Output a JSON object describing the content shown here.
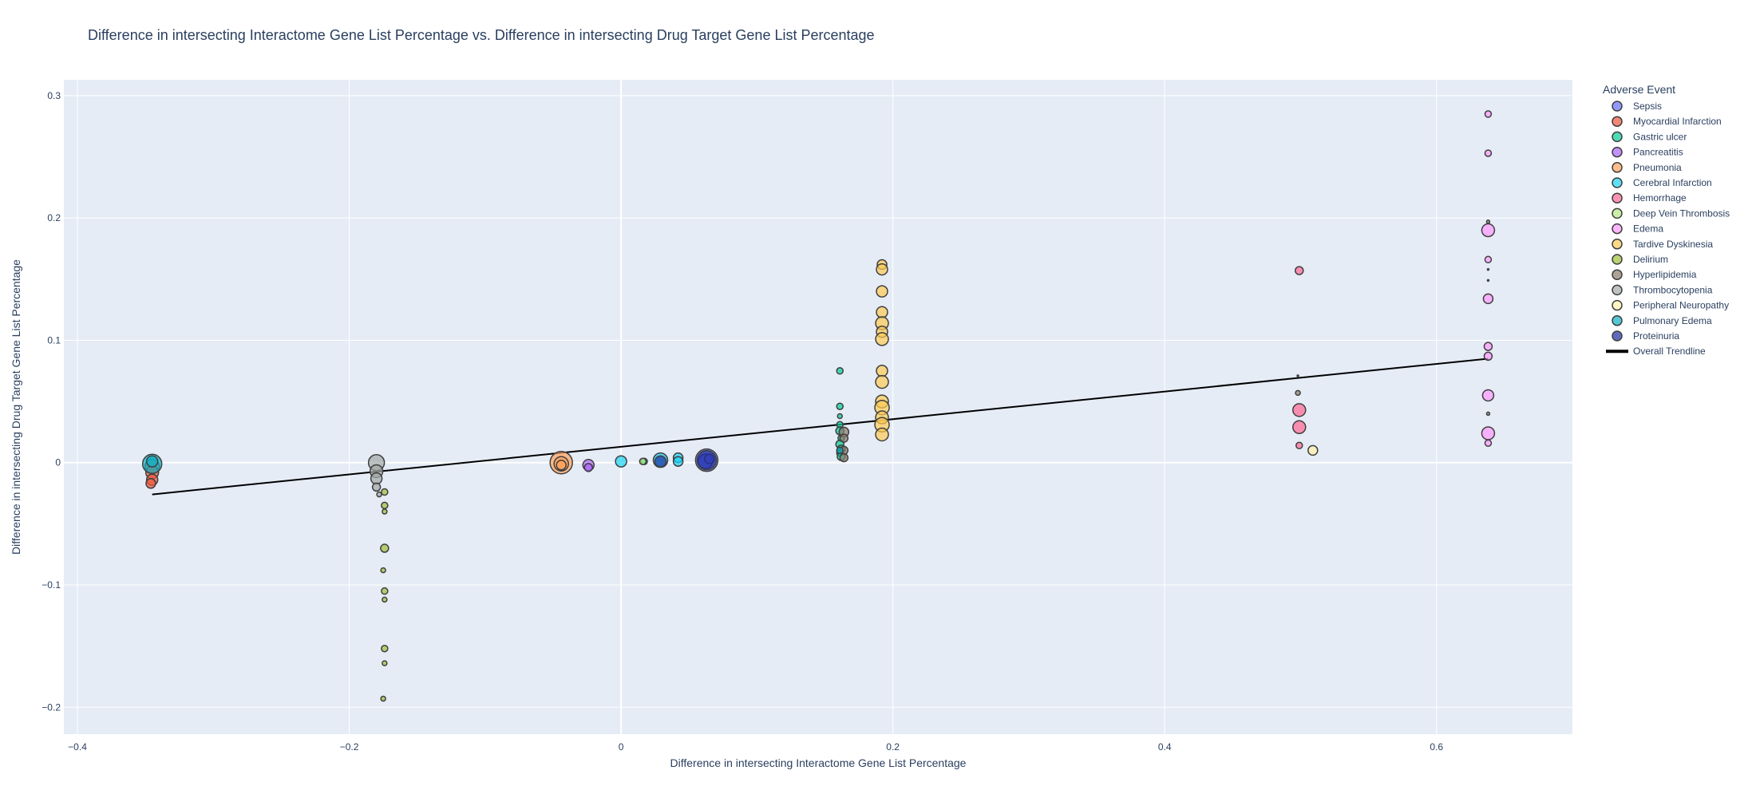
{
  "chart_data": {
    "type": "scatter",
    "title": "Difference in intersecting Interactome Gene List Percentage vs. Difference in intersecting Drug Target Gene List Percentage",
    "xlabel": "Difference in intersecting Interactome Gene List Percentage",
    "ylabel": "Difference in intersecting Drug Target Gene List Percentage",
    "xlim": [
      -0.41,
      0.7
    ],
    "ylim": [
      -0.222,
      0.313
    ],
    "x_ticks": [
      -0.4,
      -0.2,
      0,
      0.2,
      0.4,
      0.6
    ],
    "x_tick_labels": [
      "−0.4",
      "−0.2",
      "0",
      "0.2",
      "0.4",
      "0.6"
    ],
    "y_ticks": [
      -0.2,
      -0.1,
      0,
      0.1,
      0.2,
      0.3
    ],
    "y_tick_labels": [
      "−0.2",
      "−0.1",
      "0",
      "0.1",
      "0.2",
      "0.3"
    ],
    "grid": true,
    "legend_title": "Adverse Event",
    "legend_position": "right",
    "series": [
      {
        "name": "Sepsis",
        "color": "#636efa",
        "points": [
          [
            0.063,
            0.002,
            14
          ],
          [
            0.062,
            0.001,
            9
          ],
          [
            0.065,
            0.003,
            6
          ]
        ]
      },
      {
        "name": "Myocardial Infarction",
        "color": "#EF553B",
        "points": [
          [
            -0.345,
            -0.003,
            9
          ],
          [
            -0.345,
            -0.008,
            8
          ],
          [
            -0.345,
            -0.014,
            7
          ],
          [
            -0.346,
            -0.017,
            6
          ]
        ]
      },
      {
        "name": "Gastric ulcer",
        "color": "#00cc96",
        "points": [
          [
            0.161,
            0.075,
            4
          ],
          [
            0.161,
            0.046,
            4
          ],
          [
            0.161,
            0.038,
            3
          ],
          [
            0.161,
            0.031,
            4
          ],
          [
            0.161,
            0.026,
            5
          ],
          [
            0.162,
            0.02,
            4
          ],
          [
            0.161,
            0.015,
            5
          ],
          [
            0.162,
            0.011,
            5
          ],
          [
            0.161,
            0.008,
            4
          ],
          [
            0.162,
            0.005,
            5
          ],
          [
            0.017,
            0.001,
            4
          ]
        ]
      },
      {
        "name": "Pancreatitis",
        "color": "#ab63fa",
        "points": [
          [
            -0.024,
            -0.002,
            7
          ],
          [
            -0.024,
            -0.004,
            5
          ]
        ]
      },
      {
        "name": "Pneumonia",
        "color": "#FFA15A",
        "points": [
          [
            -0.044,
            0.0,
            14
          ],
          [
            -0.044,
            -0.001,
            9
          ],
          [
            -0.044,
            -0.002,
            6
          ]
        ]
      },
      {
        "name": "Cerebral Infarction",
        "color": "#19d3f3",
        "points": [
          [
            0.0,
            0.001,
            7
          ],
          [
            0.042,
            0.004,
            6
          ],
          [
            0.042,
            0.001,
            6
          ],
          [
            0.029,
            0.002,
            9
          ]
        ]
      },
      {
        "name": "Hemorrhage",
        "color": "#FF6692",
        "points": [
          [
            0.499,
            0.157,
            5
          ],
          [
            0.499,
            0.043,
            8
          ],
          [
            0.499,
            0.029,
            8
          ],
          [
            0.499,
            0.014,
            4
          ]
        ]
      },
      {
        "name": "Deep Vein Thrombosis",
        "color": "#B6E880",
        "points": [
          [
            0.016,
            0.001,
            4
          ]
        ]
      },
      {
        "name": "Edema",
        "color": "#FF97FF",
        "points": [
          [
            0.638,
            0.285,
            4
          ],
          [
            0.638,
            0.253,
            4
          ],
          [
            0.638,
            0.19,
            8
          ],
          [
            0.638,
            0.166,
            4
          ],
          [
            0.638,
            0.134,
            6
          ],
          [
            0.638,
            0.095,
            5
          ],
          [
            0.638,
            0.087,
            5
          ],
          [
            0.638,
            0.055,
            7
          ],
          [
            0.638,
            0.024,
            8
          ],
          [
            0.638,
            0.016,
            4
          ]
        ]
      },
      {
        "name": "Tardive Dyskinesia",
        "color": "#FECB52",
        "points": [
          [
            0.192,
            0.162,
            6
          ],
          [
            0.192,
            0.158,
            7
          ],
          [
            0.192,
            0.14,
            7
          ],
          [
            0.192,
            0.123,
            7
          ],
          [
            0.192,
            0.114,
            8
          ],
          [
            0.192,
            0.107,
            7
          ],
          [
            0.192,
            0.101,
            8
          ],
          [
            0.192,
            0.075,
            7
          ],
          [
            0.192,
            0.066,
            8
          ],
          [
            0.192,
            0.05,
            8
          ],
          [
            0.192,
            0.045,
            9
          ],
          [
            0.192,
            0.037,
            8
          ],
          [
            0.192,
            0.031,
            9
          ],
          [
            0.192,
            0.023,
            8
          ]
        ]
      },
      {
        "name": "Delirium",
        "color": "#9DBF34",
        "points": [
          [
            -0.174,
            -0.024,
            4
          ],
          [
            -0.174,
            -0.035,
            4
          ],
          [
            -0.174,
            -0.04,
            3
          ],
          [
            -0.174,
            -0.07,
            5
          ],
          [
            -0.175,
            -0.088,
            3
          ],
          [
            -0.174,
            -0.105,
            4
          ],
          [
            -0.174,
            -0.112,
            3
          ],
          [
            -0.174,
            -0.152,
            4
          ],
          [
            -0.174,
            -0.164,
            3
          ],
          [
            -0.175,
            -0.193,
            3
          ]
        ]
      },
      {
        "name": "Hyperlipidemia",
        "color": "#8C7B6B",
        "points": [
          [
            0.164,
            0.025,
            6
          ],
          [
            0.164,
            0.02,
            5
          ],
          [
            0.164,
            0.01,
            5
          ],
          [
            0.164,
            0.004,
            5
          ],
          [
            0.638,
            0.197,
            2
          ],
          [
            0.638,
            0.158,
            1
          ],
          [
            0.638,
            0.149,
            1
          ],
          [
            0.638,
            0.04,
            2
          ],
          [
            0.498,
            0.057,
            3
          ],
          [
            0.498,
            0.071,
            1
          ]
        ]
      },
      {
        "name": "Thrombocytopenia",
        "color": "#A3A8A5",
        "points": [
          [
            -0.18,
            0.0,
            10
          ],
          [
            -0.18,
            -0.007,
            8
          ],
          [
            -0.18,
            -0.013,
            7
          ],
          [
            -0.18,
            -0.02,
            5
          ],
          [
            -0.178,
            -0.026,
            3
          ]
        ]
      },
      {
        "name": "Peripheral Neuropathy",
        "color": "#FFF2A8",
        "points": [
          [
            0.509,
            0.01,
            6
          ]
        ]
      },
      {
        "name": "Pulmonary Edema",
        "color": "#0BB0C5",
        "points": [
          [
            -0.345,
            -0.001,
            12
          ],
          [
            -0.345,
            0.001,
            7
          ],
          [
            0.161,
            0.01,
            4
          ]
        ]
      },
      {
        "name": "Proteinuria",
        "color": "#1C2C9E",
        "points": [
          [
            0.063,
            0.002,
            12
          ],
          [
            0.029,
            0.001,
            7
          ]
        ]
      }
    ],
    "trendline": {
      "name": "Overall Trendline",
      "color": "#000000",
      "x": [
        -0.345,
        0.638
      ],
      "y": [
        -0.026,
        0.085
      ]
    }
  }
}
